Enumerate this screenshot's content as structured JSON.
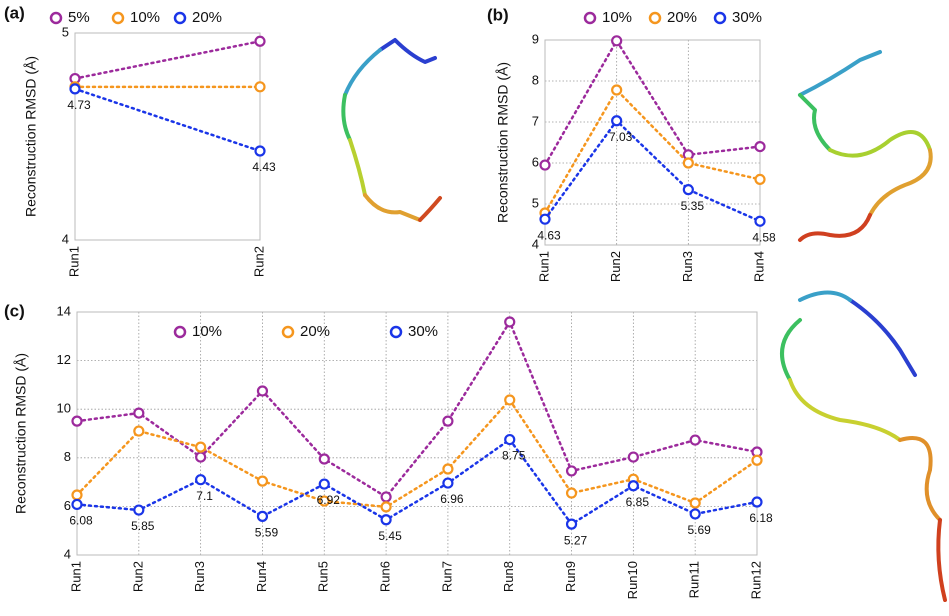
{
  "chart_data": [
    {
      "type": "line",
      "panel_label": "(a)",
      "y_label": "Reconstruction RMSD (Å)",
      "categories": [
        "Run1",
        "Run2"
      ],
      "ylim": [
        4,
        5
      ],
      "yticks": [
        4,
        5
      ],
      "grid": true,
      "series": [
        {
          "name": "5%",
          "color": "#9c2a9c",
          "values": [
            4.78,
            4.96
          ]
        },
        {
          "name": "10%",
          "color": "#f5961e",
          "values": [
            4.74,
            4.74
          ]
        },
        {
          "name": "20%",
          "color": "#1a35e8",
          "values": [
            4.73,
            4.43
          ],
          "data_labels": true
        }
      ]
    },
    {
      "type": "line",
      "panel_label": "(b)",
      "y_label": "Reconstruction RMSD (Å)",
      "categories": [
        "Run1",
        "Run2",
        "Run3",
        "Run4"
      ],
      "ylim": [
        4,
        9
      ],
      "yticks": [
        4,
        5,
        6,
        7,
        8,
        9
      ],
      "grid": true,
      "series": [
        {
          "name": "10%",
          "color": "#9c2a9c",
          "values": [
            5.95,
            8.98,
            6.2,
            6.4
          ]
        },
        {
          "name": "20%",
          "color": "#f5961e",
          "values": [
            4.78,
            7.78,
            6.0,
            5.6
          ]
        },
        {
          "name": "30%",
          "color": "#1a35e8",
          "values": [
            4.63,
            7.03,
            5.35,
            4.58
          ],
          "data_labels": true
        }
      ]
    },
    {
      "type": "line",
      "panel_label": "(c)",
      "y_label": "Reconstruction RMSD (Å)",
      "categories": [
        "Run1",
        "Run2",
        "Run3",
        "Run4",
        "Run5",
        "Run6",
        "Run7",
        "Run8",
        "Run9",
        "Run10",
        "Run11",
        "Run12"
      ],
      "ylim": [
        4,
        14
      ],
      "yticks": [
        4,
        6,
        8,
        10,
        12,
        14
      ],
      "grid": true,
      "series": [
        {
          "name": "10%",
          "color": "#9c2a9c",
          "values": [
            9.51,
            9.84,
            8.03,
            10.75,
            7.95,
            6.39,
            9.51,
            13.59,
            7.46,
            8.03,
            8.73,
            8.24
          ]
        },
        {
          "name": "20%",
          "color": "#f5961e",
          "values": [
            6.47,
            9.1,
            8.44,
            7.04,
            6.22,
            5.98,
            7.54,
            10.38,
            6.55,
            7.12,
            6.14,
            7.9
          ]
        },
        {
          "name": "30%",
          "color": "#1a35e8",
          "values": [
            6.08,
            5.85,
            7.1,
            5.59,
            6.92,
            5.45,
            6.96,
            8.75,
            5.27,
            6.85,
            5.69,
            6.18
          ],
          "data_labels": true
        }
      ]
    }
  ]
}
